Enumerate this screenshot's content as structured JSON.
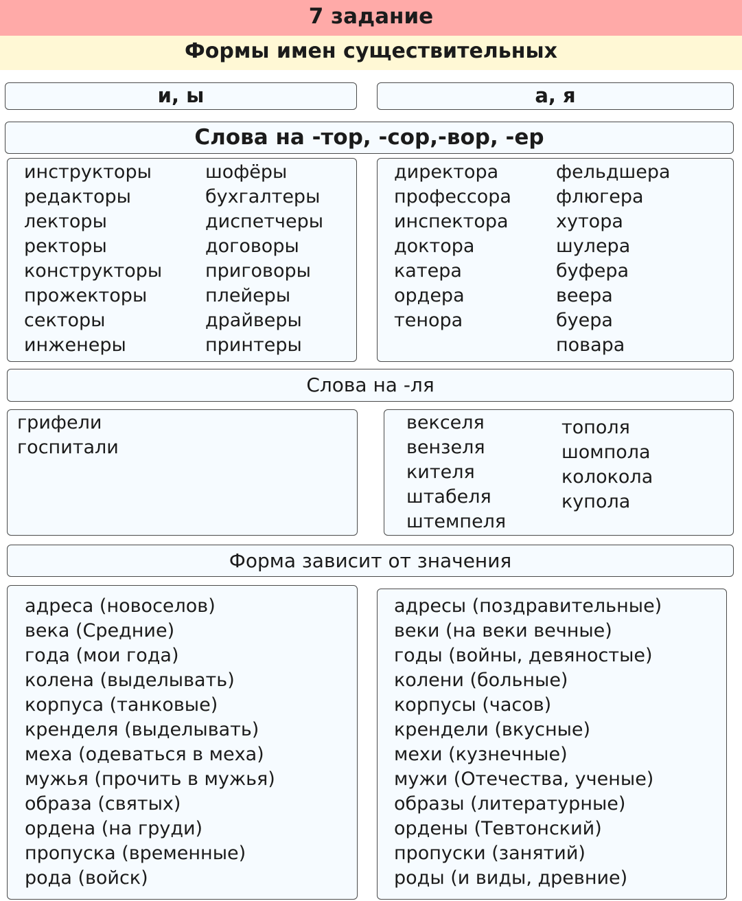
{
  "title": "7 задание",
  "subtitle": "Формы имен существительных",
  "header_left": "и, ы",
  "header_right": "а, я",
  "section1": {
    "title": "Слова на -тор, -сор,-вор, -ер",
    "left_col1": [
      "инструкторы",
      "редакторы",
      "лекторы",
      "ректоры",
      "конструкторы",
      "прожекторы",
      "секторы",
      "инженеры"
    ],
    "left_col2": [
      "шофёры",
      "бухгалтеры",
      "диспетчеры",
      "договоры",
      "приговоры",
      "плейеры",
      "драйверы",
      "принтеры"
    ],
    "right_col1": [
      "директора",
      "профессора",
      "инспектора",
      "доктора",
      "катера",
      "ордера",
      "тенора"
    ],
    "right_col2": [
      "фельдшера",
      "флюгера",
      "хутора",
      "шулера",
      "буфера",
      "веера",
      "буера",
      "повара"
    ]
  },
  "section2": {
    "title": "Слова на -ля",
    "left_col1": [
      "грифели",
      "госпитали"
    ],
    "right_col1": [
      "векселя",
      "вензеля",
      "кителя",
      "штабеля",
      "штемпеля"
    ],
    "right_col2": [
      "тополя",
      "шомпола",
      "колокола",
      "купола"
    ]
  },
  "section3": {
    "title": "Форма зависит от значения",
    "left": [
      "адреса (новоселов)",
      "века (Средние)",
      "года (мои года)",
      "колена (выделывать)",
      "корпуса (танковые)",
      "кренделя (выделывать)",
      "меха (одеваться в меха)",
      "мужья (прочить в мужья)",
      "образа (святых)",
      "ордена (на груди)",
      "пропуска (временные)",
      "рода (войск)"
    ],
    "right": [
      "адресы (поздравительные)",
      "веки (на веки вечные)",
      "годы (войны, девяностые)",
      "колени (больные)",
      "корпусы (часов)",
      "крендели (вкусные)",
      "мехи (кузнечные)",
      "мужи (Отечества, ученые)",
      "образы (литературные)",
      "ордены (Тевтонский)",
      "пропуски (занятий)",
      "роды (и виды, древние)"
    ]
  }
}
